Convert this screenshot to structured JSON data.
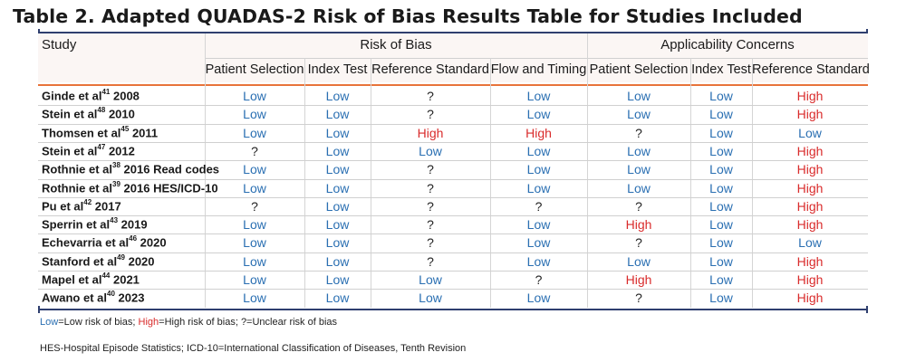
{
  "title": "Table 2. Adapted QUADAS-2 Risk of Bias Results Table for Studies Included",
  "header": {
    "study": "Study",
    "risk_of_bias": "Risk of Bias",
    "applicability": "Applicability Concerns",
    "columns": [
      "Patient Selection",
      "Index Test",
      "Reference Standard",
      "Flow and Timing",
      "Patient Selection",
      "Index Test",
      "Reference Standard"
    ]
  },
  "rows": [
    {
      "name": "Ginde et al",
      "ref": "41",
      "year": " 2008",
      "values": [
        "Low",
        "Low",
        "?",
        "Low",
        "Low",
        "Low",
        "High"
      ]
    },
    {
      "name": "Stein et al",
      "ref": "48",
      "year": " 2010",
      "values": [
        "Low",
        "Low",
        "?",
        "Low",
        "Low",
        "Low",
        "High"
      ]
    },
    {
      "name": "Thomsen et al",
      "ref": "45",
      "year": " 2011",
      "values": [
        "Low",
        "Low",
        "High",
        "High",
        "?",
        "Low",
        "Low"
      ]
    },
    {
      "name": "Stein et al",
      "ref": "47",
      "year": " 2012",
      "values": [
        "?",
        "Low",
        "Low",
        "Low",
        "Low",
        "Low",
        "High"
      ]
    },
    {
      "name": "Rothnie et al",
      "ref": "38",
      "year": " 2016 Read codes",
      "values": [
        "Low",
        "Low",
        "?",
        "Low",
        "Low",
        "Low",
        "High"
      ]
    },
    {
      "name": "Rothnie et al",
      "ref": "39",
      "year": " 2016 HES/ICD-10",
      "values": [
        "Low",
        "Low",
        "?",
        "Low",
        "Low",
        "Low",
        "High"
      ]
    },
    {
      "name": "Pu et al",
      "ref": "42",
      "year": " 2017",
      "values": [
        "?",
        "Low",
        "?",
        "?",
        "?",
        "Low",
        "High"
      ]
    },
    {
      "name": "Sperrin et al",
      "ref": "43",
      "year": " 2019",
      "values": [
        "Low",
        "Low",
        "?",
        "Low",
        "High",
        "Low",
        "High"
      ]
    },
    {
      "name": "Echevarria et al",
      "ref": "46",
      "year": " 2020",
      "values": [
        "Low",
        "Low",
        "?",
        "Low",
        "?",
        "Low",
        "Low"
      ]
    },
    {
      "name": "Stanford et al",
      "ref": "49",
      "year": " 2020",
      "values": [
        "Low",
        "Low",
        "?",
        "Low",
        "Low",
        "Low",
        "High"
      ]
    },
    {
      "name": "Mapel et al",
      "ref": "44",
      "year": " 2021",
      "values": [
        "Low",
        "Low",
        "Low",
        "?",
        "High",
        "Low",
        "High"
      ]
    },
    {
      "name": "Awano et al",
      "ref": "40",
      "year": " 2023",
      "values": [
        "Low",
        "Low",
        "Low",
        "Low",
        "?",
        "Low",
        "High"
      ]
    }
  ],
  "footnotes": {
    "legend_low": "Low",
    "legend_low_rest": "=Low risk of bias; ",
    "legend_high": "High",
    "legend_high_rest": "=High risk of bias; ?=Unclear risk of bias",
    "abbreviations": "HES-Hospital Episode Statistics; ICD-10=International Classification of Diseases, Tenth Revision"
  },
  "colors": {
    "low": "#2a6fb2",
    "high": "#d92b2b",
    "rule": "#2f3f6f",
    "header_separator": "#e8733a"
  }
}
